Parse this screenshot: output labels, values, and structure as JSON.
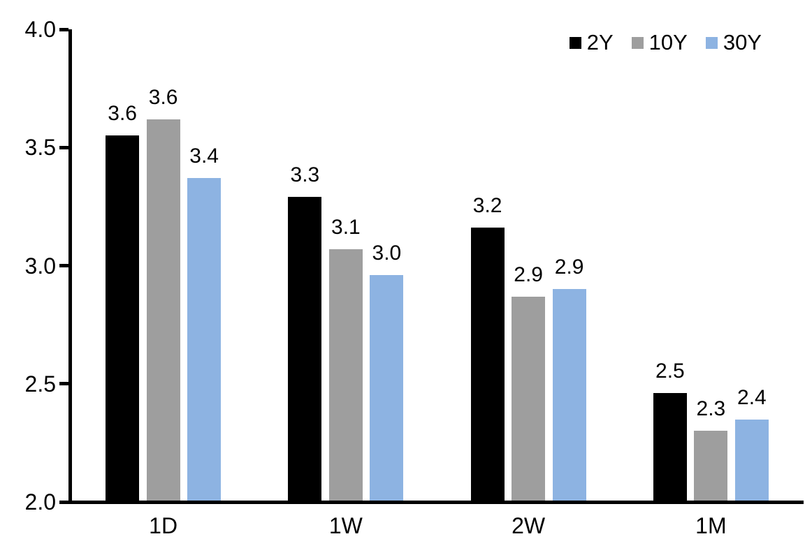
{
  "chart_data": {
    "type": "bar",
    "title": "",
    "xlabel": "",
    "ylabel": "",
    "categories": [
      "1D",
      "1W",
      "2W",
      "1M"
    ],
    "series": [
      {
        "name": "2Y",
        "color": "#000000",
        "values": [
          3.55,
          3.29,
          3.16,
          2.46
        ],
        "labels": [
          "3.6",
          "3.3",
          "3.2",
          "2.5"
        ]
      },
      {
        "name": "10Y",
        "color": "#9E9E9E",
        "values": [
          3.62,
          3.07,
          2.87,
          2.3
        ],
        "labels": [
          "3.6",
          "3.1",
          "2.9",
          "2.3"
        ]
      },
      {
        "name": "30Y",
        "color": "#8DB3E2",
        "values": [
          3.37,
          2.96,
          2.9,
          2.35
        ],
        "labels": [
          "3.4",
          "3.0",
          "2.9",
          "2.4"
        ]
      }
    ],
    "ylim": [
      2.0,
      4.0
    ],
    "yticks": [
      4.0,
      3.5,
      3.0,
      2.5,
      2.0
    ],
    "ytick_labels": [
      "4.0",
      "3.5",
      "3.0",
      "2.5",
      "2.0"
    ],
    "grid": false,
    "legend_position": "top-right",
    "colors": {
      "axis": "#000000",
      "background": "#FFFFFF",
      "text": "#000000"
    }
  }
}
